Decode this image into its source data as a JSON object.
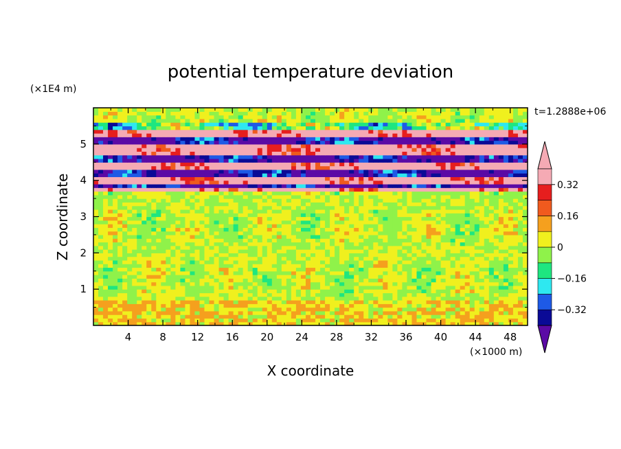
{
  "chart_data": {
    "type": "heatmap",
    "title": "potential temperature deviation",
    "xlabel": "X coordinate",
    "ylabel": "Z coordinate",
    "x_unit_label": "(×1000 m)",
    "y_unit_label": "(×1E4 m)",
    "time_label": "t=1.2888e+06",
    "xlim": [
      0,
      50
    ],
    "ylim": [
      0,
      6
    ],
    "x_ticks": [
      4,
      8,
      12,
      16,
      20,
      24,
      28,
      32,
      36,
      40,
      44,
      48
    ],
    "y_ticks": [
      1,
      2,
      3,
      4,
      5
    ],
    "colorbar": {
      "levels": [
        -0.4,
        -0.32,
        -0.24,
        -0.16,
        -0.08,
        0,
        0.08,
        0.16,
        0.24,
        0.32,
        0.4
      ],
      "tick_labels": [
        "0.32",
        "0.16",
        "0",
        "−0.16",
        "−0.32"
      ],
      "tick_values": [
        0.32,
        0.16,
        0,
        -0.16,
        -0.32
      ],
      "colors_low_to_high": [
        "#5b0aa5",
        "#0a0a96",
        "#1e5ae6",
        "#2ee8f0",
        "#1ee680",
        "#8ff24a",
        "#f0f01e",
        "#f5a01e",
        "#f05a1e",
        "#e61e1e",
        "#f5aab4"
      ]
    },
    "bands": [
      {
        "z": [
          3.7,
          3.85
        ],
        "value": 0.42
      },
      {
        "z": [
          3.85,
          3.95
        ],
        "value": -0.42
      },
      {
        "z": [
          3.95,
          4.15
        ],
        "value": 0.42
      },
      {
        "z": [
          4.15,
          4.3
        ],
        "value": -0.42
      },
      {
        "z": [
          4.3,
          4.5
        ],
        "value": 0.42
      },
      {
        "z": [
          4.5,
          4.7
        ],
        "value": -0.42
      },
      {
        "z": [
          4.7,
          5.0
        ],
        "value": 0.42
      },
      {
        "z": [
          5.0,
          5.25
        ],
        "value": -0.42
      },
      {
        "z": [
          5.25,
          5.45
        ],
        "value": 0.42
      },
      {
        "z": [
          5.45,
          5.6
        ],
        "value": -0.1
      }
    ]
  }
}
